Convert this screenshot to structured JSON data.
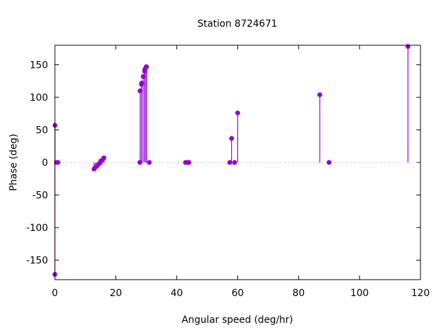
{
  "chart_data": {
    "type": "impulse",
    "title": "Station 8724671",
    "xlabel": "Angular speed (deg/hr)",
    "ylabel": "Phase (deg)",
    "xlim": [
      0,
      120
    ],
    "ylim": [
      -180,
      180
    ],
    "xticks": [
      0,
      20,
      40,
      60,
      80,
      100,
      120
    ],
    "yticks": [
      -150,
      -100,
      -50,
      0,
      50,
      100,
      150
    ],
    "zero_line": true,
    "color": "#9400d3",
    "points": [
      [
        0,
        -172
      ],
      [
        0.04,
        57
      ],
      [
        0.5,
        0
      ],
      [
        1.0,
        0
      ],
      [
        12.85,
        -10
      ],
      [
        13.4,
        -7
      ],
      [
        13.9,
        -5
      ],
      [
        14.5,
        -2
      ],
      [
        14.96,
        0
      ],
      [
        15.04,
        2
      ],
      [
        15.6,
        4
      ],
      [
        16.1,
        7
      ],
      [
        27.9,
        0
      ],
      [
        27.97,
        110
      ],
      [
        28.44,
        120
      ],
      [
        28.51,
        122
      ],
      [
        28.98,
        132
      ],
      [
        29.46,
        140
      ],
      [
        29.53,
        143
      ],
      [
        29.96,
        147
      ],
      [
        30.08,
        147
      ],
      [
        31.0,
        0
      ],
      [
        42.9,
        0
      ],
      [
        43.5,
        0
      ],
      [
        44.0,
        0
      ],
      [
        57.4,
        0
      ],
      [
        58.0,
        37
      ],
      [
        59.0,
        0
      ],
      [
        60.0,
        76
      ],
      [
        86.95,
        104
      ],
      [
        90.0,
        0
      ],
      [
        115.9,
        178
      ]
    ]
  }
}
